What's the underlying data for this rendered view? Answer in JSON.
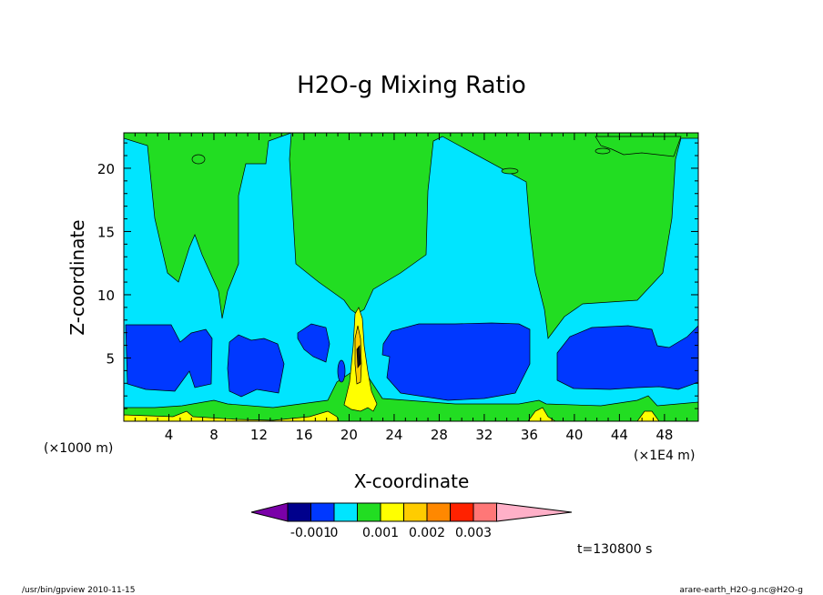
{
  "chart_data": {
    "type": "heatmap",
    "title": "H2O-g Mixing Ratio",
    "xlabel": "X-coordinate",
    "ylabel": "Z-coordinate",
    "x_scale_note_left": "(×1000 m)",
    "x_scale_note_right": "(×1E4 m)",
    "xlim": [
      0,
      51
    ],
    "ylim": [
      0,
      22.8
    ],
    "x_ticks": [
      4,
      8,
      12,
      16,
      20,
      24,
      28,
      32,
      36,
      40,
      44,
      48
    ],
    "y_ticks": [
      5,
      10,
      15,
      20
    ],
    "colorbar": {
      "labels": [
        "-0.001",
        "0",
        "0.001",
        "0.002",
        "0.003"
      ],
      "colors": [
        "#7a00a8",
        "#00008c",
        "#0038ff",
        "#00e5ff",
        "#22dd22",
        "#ffff00",
        "#ffcc00",
        "#ff8800",
        "#ff2200",
        "#ff7777",
        "#ffb0c8"
      ]
    },
    "background_color": "#00e5ff",
    "regions": [
      {
        "kind": "green_top",
        "color": "#22dd22",
        "x": [
          0,
          51
        ],
        "z": [
          19,
          22.8
        ]
      },
      {
        "kind": "green_column",
        "color": "#22dd22",
        "x_center": 6,
        "z_bottom": 8.4
      },
      {
        "kind": "green_column",
        "color": "#22dd22",
        "x_center": 20.5,
        "z_bottom": 9
      },
      {
        "kind": "green_column",
        "color": "#22dd22",
        "x_center": 37.5,
        "z_bottom": 6.5
      },
      {
        "kind": "blue_cell",
        "color": "#0038ff",
        "x": [
          0.5,
          7.5
        ],
        "z": [
          2.5,
          7.7
        ]
      },
      {
        "kind": "blue_cell",
        "color": "#0038ff",
        "x": [
          9.8,
          13.6
        ],
        "z": [
          2.2,
          6.8
        ]
      },
      {
        "kind": "blue_cell",
        "color": "#0038ff",
        "x": [
          15.5,
          18.2
        ],
        "z": [
          3.3,
          7.5
        ]
      },
      {
        "kind": "blue_cell",
        "color": "#0038ff",
        "x": [
          22.5,
          35.8
        ],
        "z": [
          1.8,
          7.8
        ]
      },
      {
        "kind": "blue_cell",
        "color": "#0038ff",
        "x": [
          38.5,
          51
        ],
        "z": [
          2.5,
          7.7
        ]
      },
      {
        "kind": "yellow_plume",
        "color": "#ffff00",
        "x_center": 20.6,
        "z_top": 8.5
      }
    ],
    "time_label": "t=130800 s"
  },
  "footer": {
    "left": "/usr/bin/gpview  2010-11-15",
    "right": "arare-earth_H2O-g.nc@H2O-g"
  }
}
